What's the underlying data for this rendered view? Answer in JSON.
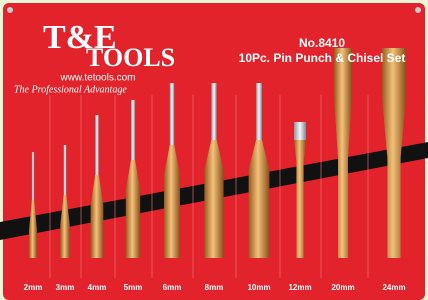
{
  "logo": {
    "top": "T&E",
    "bottom": "TOOLS",
    "url": "www.tetools.com",
    "tagline": "The Professional Advantage"
  },
  "product": {
    "number": "No.8410",
    "name": "10Pc. Pin Punch & Chisel Set"
  },
  "tools": [
    {
      "size": "2mm"
    },
    {
      "size": "3mm"
    },
    {
      "size": "4mm"
    },
    {
      "size": "5mm"
    },
    {
      "size": "6mm"
    },
    {
      "size": "8mm"
    },
    {
      "size": "10mm"
    },
    {
      "size": "12mm"
    },
    {
      "size": "20mm"
    },
    {
      "size": "24mm"
    }
  ]
}
